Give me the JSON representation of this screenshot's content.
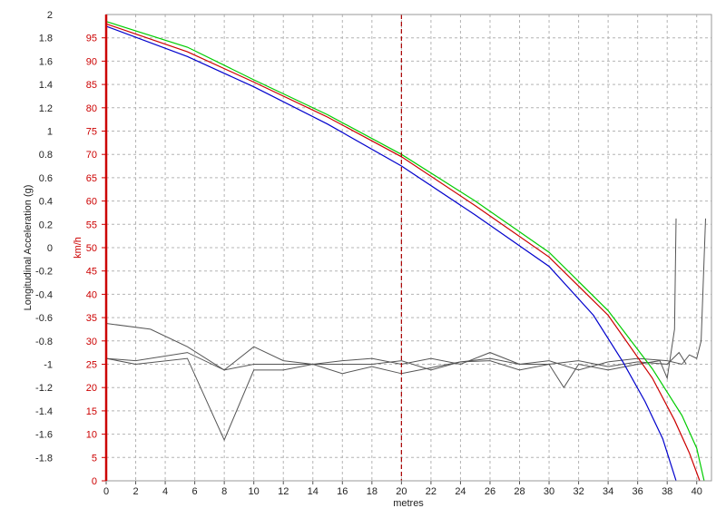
{
  "chart_data": {
    "type": "line",
    "xlabel": "metres",
    "ylabel_left": "Longitudinal Acceleration (g)",
    "ylabel_right": "km/h",
    "xlim": [
      0,
      41
    ],
    "ylim_accel": [
      -2,
      2
    ],
    "ylim_speed": [
      0,
      100
    ],
    "x_ticks": [
      0,
      2,
      4,
      6,
      8,
      10,
      12,
      14,
      16,
      18,
      20,
      22,
      24,
      26,
      28,
      30,
      32,
      34,
      36,
      38,
      40
    ],
    "accel_ticks": [
      "2",
      "1.8",
      "1.6",
      "1.4",
      "1.2",
      "1",
      "0.8",
      "0.6",
      "0.4",
      "0.2",
      "0",
      "-0.2",
      "-0.4",
      "-0.6",
      "-0.8",
      "-1",
      "-1.2",
      "-1.4",
      "-1.6",
      "-1.8"
    ],
    "speed_ticks": [
      95,
      90,
      85,
      80,
      75,
      70,
      65,
      60,
      55,
      50,
      45,
      40,
      35,
      30,
      25,
      20,
      15,
      10,
      5,
      0
    ],
    "marker_x": 20,
    "grid": true,
    "colors": {
      "speed_axis": "#cc0000",
      "marker": "#aa0000",
      "grid": "#b4b4b4",
      "frame": "#9a9a9a"
    },
    "speed_series": [
      {
        "color": "#00cc00",
        "x": [
          0,
          5.5,
          10,
          15,
          20,
          25,
          30,
          34,
          37,
          39,
          40,
          40.5
        ],
        "y": [
          98.5,
          93,
          86,
          78.5,
          70,
          60,
          49,
          36.5,
          24,
          14,
          7,
          0
        ]
      },
      {
        "color": "#cc0000",
        "x": [
          0,
          5.5,
          10,
          15,
          20,
          25,
          30,
          34,
          37,
          38.5,
          39.5,
          40.2
        ],
        "y": [
          98,
          92,
          85.5,
          78,
          69.5,
          59,
          48,
          35.5,
          22,
          13,
          6,
          0
        ]
      },
      {
        "color": "#0000cc",
        "x": [
          0,
          5.5,
          10,
          15,
          20,
          25,
          30,
          33,
          35,
          36.5,
          37.7,
          38.3,
          38.6
        ],
        "y": [
          97.5,
          91,
          84.5,
          76.5,
          67.5,
          57,
          46,
          35.5,
          25.5,
          17,
          9,
          3,
          0
        ]
      }
    ],
    "accel_series": [
      {
        "color": "#555555",
        "x": [
          0,
          2,
          5.5,
          8,
          10,
          12,
          14,
          16,
          18,
          20,
          22,
          24,
          26,
          28,
          30,
          31,
          32,
          34,
          36,
          37.5,
          38,
          38.5,
          38.6
        ],
        "y": [
          -0.95,
          -1.0,
          -0.95,
          -1.65,
          -1.05,
          -1.05,
          -1.0,
          -1.0,
          -1.0,
          -0.97,
          -1.05,
          -0.98,
          -0.97,
          -1.05,
          -1.0,
          -1.2,
          -1.0,
          -1.05,
          -1.0,
          -0.97,
          -1.12,
          -0.7,
          0.25
        ]
      },
      {
        "color": "#555555",
        "x": [
          0,
          3,
          5.5,
          8,
          10,
          12,
          14,
          16,
          18,
          20,
          22,
          24,
          26,
          28,
          30,
          32,
          34,
          36,
          38,
          39,
          39.5,
          40,
          40.3,
          40.6
        ],
        "y": [
          -0.65,
          -0.7,
          -0.85,
          -1.05,
          -0.85,
          -0.97,
          -1.0,
          -0.97,
          -0.95,
          -1.0,
          -0.95,
          -1.0,
          -0.9,
          -1.0,
          -0.97,
          -1.05,
          -0.98,
          -0.95,
          -0.97,
          -1.0,
          -0.92,
          -0.95,
          -0.8,
          0.25
        ]
      },
      {
        "color": "#555555",
        "x": [
          0,
          2,
          5.5,
          8,
          10,
          12,
          14,
          16,
          18,
          20,
          22,
          24,
          26,
          28,
          30,
          32,
          34,
          36,
          38,
          38.8,
          39.3
        ],
        "y": [
          -0.95,
          -0.97,
          -0.9,
          -1.05,
          -1.0,
          -1.0,
          -1.0,
          -1.08,
          -1.02,
          -1.08,
          -1.03,
          -0.98,
          -0.95,
          -1.0,
          -1.0,
          -0.97,
          -1.02,
          -0.98,
          -1.0,
          -0.9,
          -1.0
        ]
      }
    ]
  }
}
